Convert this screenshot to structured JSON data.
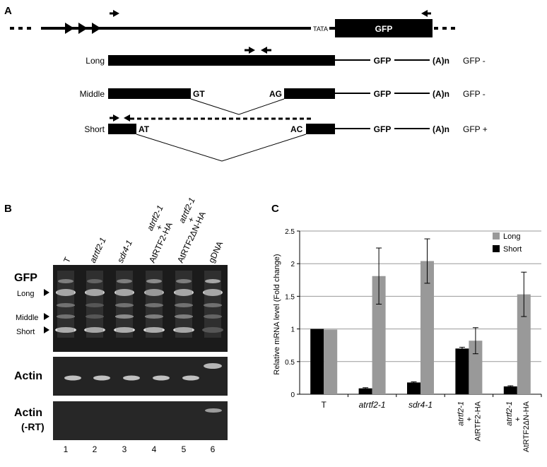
{
  "panel_a": {
    "label": "A",
    "tata": "TATA",
    "gfp_box": "GFP",
    "transcripts": [
      {
        "name": "Long",
        "gfp": "GFP",
        "polya": "(A)n",
        "status": "GFP -"
      },
      {
        "name": "Middle",
        "donor": "GT",
        "acceptor": "AG",
        "gfp": "GFP",
        "polya": "(A)n",
        "status": "GFP -"
      },
      {
        "name": "Short",
        "donor": "AT",
        "acceptor": "AC",
        "gfp": "GFP",
        "polya": "(A)n",
        "status": "GFP +"
      }
    ]
  },
  "panel_b": {
    "label": "B",
    "lanes": [
      {
        "label": "T",
        "italic": false
      },
      {
        "label": "atrtf2-1",
        "italic": true
      },
      {
        "label": "sdr4-1",
        "italic": true
      },
      {
        "label": "atrtf2-1",
        "italic": true,
        "line2": "+",
        "line3": "AtRTF2-HA"
      },
      {
        "label": "atrtf2-1",
        "italic": true,
        "line2": "+",
        "line3": "AtRTF2ΔN-HA"
      },
      {
        "label": "gDNA",
        "italic": false
      }
    ],
    "gel_gfp": {
      "title": "GFP",
      "bands": [
        "Long",
        "Middle",
        "Short"
      ]
    },
    "gel_actin": {
      "title": "Actin"
    },
    "gel_actin_rt": {
      "title": "Actin",
      "subtitle": "(-RT)"
    },
    "lane_numbers": [
      "1",
      "2",
      "3",
      "4",
      "5",
      "6"
    ]
  },
  "panel_c": {
    "label": "C"
  },
  "chart_data": {
    "type": "bar",
    "ylabel": "Relative mRNA level (Fold change)",
    "ylim": [
      0,
      2.5
    ],
    "yticks": [
      "0",
      "0.5",
      "1",
      "1.5",
      "2",
      "2.5"
    ],
    "categories": [
      {
        "label": "T",
        "italic": false
      },
      {
        "label": "atrtf2-1",
        "italic": true
      },
      {
        "label": "sdr4-1",
        "italic": true
      },
      {
        "label": "atrtf2-1",
        "italic": true,
        "line2": "+",
        "line3": "AtRTF2-HA"
      },
      {
        "label": "atrtf2-1",
        "italic": true,
        "line2": "+",
        "line3": "AtRTF2ΔN-HA"
      }
    ],
    "series": [
      {
        "name": "Short",
        "color": "#000000",
        "values": [
          1.0,
          0.09,
          0.18,
          0.7,
          0.12
        ],
        "errors": [
          0,
          0.01,
          0.01,
          0.02,
          0.01
        ]
      },
      {
        "name": "Long",
        "color": "#999999",
        "values": [
          0.99,
          1.81,
          2.04,
          0.82,
          1.53
        ],
        "errors": [
          0,
          0.43,
          0.34,
          0.2,
          0.34
        ]
      }
    ],
    "legend_order": [
      "Long",
      "Short"
    ],
    "grid": true,
    "legend_position": "top-right"
  }
}
